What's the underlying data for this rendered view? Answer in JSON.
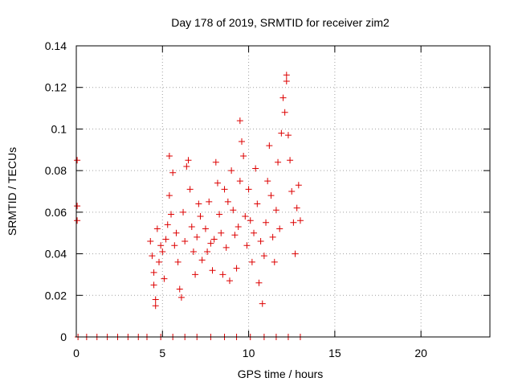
{
  "chart_data": {
    "type": "scatter",
    "title": "Day 178 of 2019, SRMTID for receiver zim2",
    "xlabel": "GPS time / hours",
    "ylabel": "SRMTID / TECUs",
    "xlim": [
      0,
      24
    ],
    "ylim": [
      0,
      0.14
    ],
    "xticks": [
      "0",
      "5",
      "10",
      "15",
      "20"
    ],
    "yticks": [
      "0",
      "0.02",
      "0.04",
      "0.06",
      "0.08",
      "0.1",
      "0.12",
      "0.14"
    ],
    "grid": true,
    "marker": "+",
    "series": [
      {
        "name": "SRMTID",
        "color": "#dd0000",
        "points": [
          [
            0.05,
            0.085
          ],
          [
            0.05,
            0.063
          ],
          [
            0.05,
            0.056
          ],
          [
            4.3,
            0.046
          ],
          [
            4.4,
            0.039
          ],
          [
            4.5,
            0.031
          ],
          [
            4.5,
            0.025
          ],
          [
            4.6,
            0.018
          ],
          [
            4.6,
            0.015
          ],
          [
            4.7,
            0.052
          ],
          [
            4.8,
            0.036
          ],
          [
            4.9,
            0.044
          ],
          [
            5.0,
            0.041
          ],
          [
            5.1,
            0.028
          ],
          [
            5.2,
            0.047
          ],
          [
            5.3,
            0.054
          ],
          [
            5.4,
            0.087
          ],
          [
            5.4,
            0.068
          ],
          [
            5.5,
            0.059
          ],
          [
            5.6,
            0.079
          ],
          [
            5.7,
            0.044
          ],
          [
            5.8,
            0.05
          ],
          [
            5.9,
            0.036
          ],
          [
            6.0,
            0.023
          ],
          [
            6.1,
            0.019
          ],
          [
            6.2,
            0.06
          ],
          [
            6.3,
            0.046
          ],
          [
            6.4,
            0.082
          ],
          [
            6.5,
            0.085
          ],
          [
            6.6,
            0.071
          ],
          [
            6.7,
            0.053
          ],
          [
            6.8,
            0.041
          ],
          [
            6.9,
            0.03
          ],
          [
            7.0,
            0.048
          ],
          [
            7.1,
            0.064
          ],
          [
            7.2,
            0.058
          ],
          [
            7.3,
            0.037
          ],
          [
            7.5,
            0.052
          ],
          [
            7.6,
            0.041
          ],
          [
            7.7,
            0.065
          ],
          [
            7.8,
            0.045
          ],
          [
            7.9,
            0.032
          ],
          [
            8.0,
            0.047
          ],
          [
            8.1,
            0.084
          ],
          [
            8.2,
            0.074
          ],
          [
            8.3,
            0.059
          ],
          [
            8.4,
            0.05
          ],
          [
            8.5,
            0.03
          ],
          [
            8.6,
            0.071
          ],
          [
            8.7,
            0.043
          ],
          [
            8.8,
            0.065
          ],
          [
            8.9,
            0.027
          ],
          [
            9.0,
            0.08
          ],
          [
            9.1,
            0.061
          ],
          [
            9.2,
            0.049
          ],
          [
            9.3,
            0.033
          ],
          [
            9.4,
            0.053
          ],
          [
            9.5,
            0.075
          ],
          [
            9.5,
            0.104
          ],
          [
            9.6,
            0.094
          ],
          [
            9.7,
            0.087
          ],
          [
            9.8,
            0.058
          ],
          [
            9.9,
            0.044
          ],
          [
            10.0,
            0.071
          ],
          [
            10.1,
            0.056
          ],
          [
            10.2,
            0.036
          ],
          [
            10.3,
            0.05
          ],
          [
            10.4,
            0.081
          ],
          [
            10.5,
            0.064
          ],
          [
            10.6,
            0.026
          ],
          [
            10.7,
            0.046
          ],
          [
            10.8,
            0.016
          ],
          [
            10.9,
            0.039
          ],
          [
            11.0,
            0.055
          ],
          [
            11.1,
            0.075
          ],
          [
            11.2,
            0.092
          ],
          [
            11.3,
            0.068
          ],
          [
            11.4,
            0.048
          ],
          [
            11.5,
            0.036
          ],
          [
            11.6,
            0.061
          ],
          [
            11.7,
            0.084
          ],
          [
            11.8,
            0.052
          ],
          [
            11.9,
            0.098
          ],
          [
            12.0,
            0.115
          ],
          [
            12.1,
            0.108
          ],
          [
            12.2,
            0.126
          ],
          [
            12.2,
            0.123
          ],
          [
            12.3,
            0.097
          ],
          [
            12.4,
            0.085
          ],
          [
            12.5,
            0.07
          ],
          [
            12.6,
            0.055
          ],
          [
            12.7,
            0.04
          ],
          [
            12.8,
            0.062
          ],
          [
            12.9,
            0.073
          ],
          [
            13.0,
            0.056
          ],
          [
            0.1,
            0.0
          ],
          [
            0.6,
            0.0
          ],
          [
            1.2,
            0.0
          ],
          [
            1.8,
            0.0
          ],
          [
            2.4,
            0.0
          ],
          [
            3.0,
            0.0
          ],
          [
            3.6,
            0.0
          ],
          [
            4.1,
            0.0
          ],
          [
            4.9,
            0.0
          ],
          [
            5.6,
            0.0
          ],
          [
            6.3,
            0.0
          ],
          [
            7.0,
            0.0
          ],
          [
            7.8,
            0.0
          ],
          [
            8.6,
            0.0
          ],
          [
            9.3,
            0.0
          ],
          [
            10.1,
            0.0
          ],
          [
            10.9,
            0.0
          ],
          [
            11.6,
            0.0
          ],
          [
            12.3,
            0.0
          ],
          [
            13.0,
            0.0
          ]
        ]
      }
    ]
  }
}
